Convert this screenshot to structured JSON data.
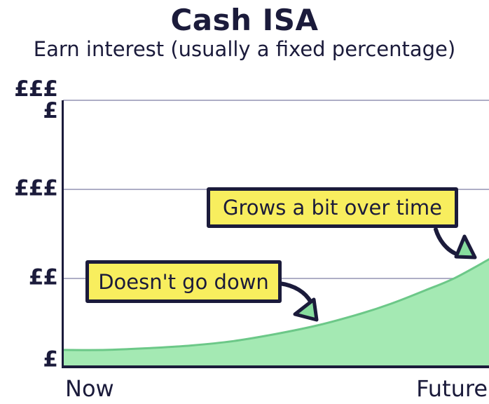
{
  "header": {
    "title": "Cash ISA",
    "subtitle": "Earn interest (usually a fixed percentage)"
  },
  "axes": {
    "y_labels_top_to_bottom": [
      "££££",
      "£££",
      "££",
      "£"
    ],
    "x_label_left": "Now",
    "x_label_right": "Future"
  },
  "callouts": {
    "grows": "Grows a bit over time",
    "doesnt_go_down": "Doesn't go down"
  },
  "colors": {
    "navy": "#1b1b3b",
    "grid": "#aeaec6",
    "area_fill": "#a4e9b3",
    "area_stroke": "#6cc888",
    "callout_bg": "#f8ee5e",
    "arrowhead_fill": "#87dc9e"
  },
  "chart_data": {
    "type": "area",
    "title": "Cash ISA",
    "subtitle": "Earn interest (usually a fixed percentage)",
    "xlabel": "",
    "ylabel": "",
    "x_axis": {
      "labels": [
        "Now",
        "Future"
      ],
      "range": [
        0,
        1
      ]
    },
    "y_axis": {
      "labels_bottom_to_top": [
        "£",
        "££",
        "£££",
        "££££"
      ],
      "unit_mapping": "0 = £ (baseline), 1 = ££, 2 = £££, 3 = ££££",
      "range": [
        0,
        3
      ]
    },
    "grid": true,
    "legend": "none",
    "series": [
      {
        "name": "Cash ISA",
        "points": [
          [
            0.0,
            0.19
          ],
          [
            0.1,
            0.19
          ],
          [
            0.2,
            0.21
          ],
          [
            0.3,
            0.24
          ],
          [
            0.4,
            0.29
          ],
          [
            0.5,
            0.37
          ],
          [
            0.6,
            0.47
          ],
          [
            0.7,
            0.6
          ],
          [
            0.77,
            0.71
          ],
          [
            0.85,
            0.86
          ],
          [
            0.92,
            1.0
          ],
          [
            1.0,
            1.21
          ]
        ]
      }
    ],
    "annotations": [
      "Doesn't go down",
      "Grows a bit over time"
    ]
  }
}
